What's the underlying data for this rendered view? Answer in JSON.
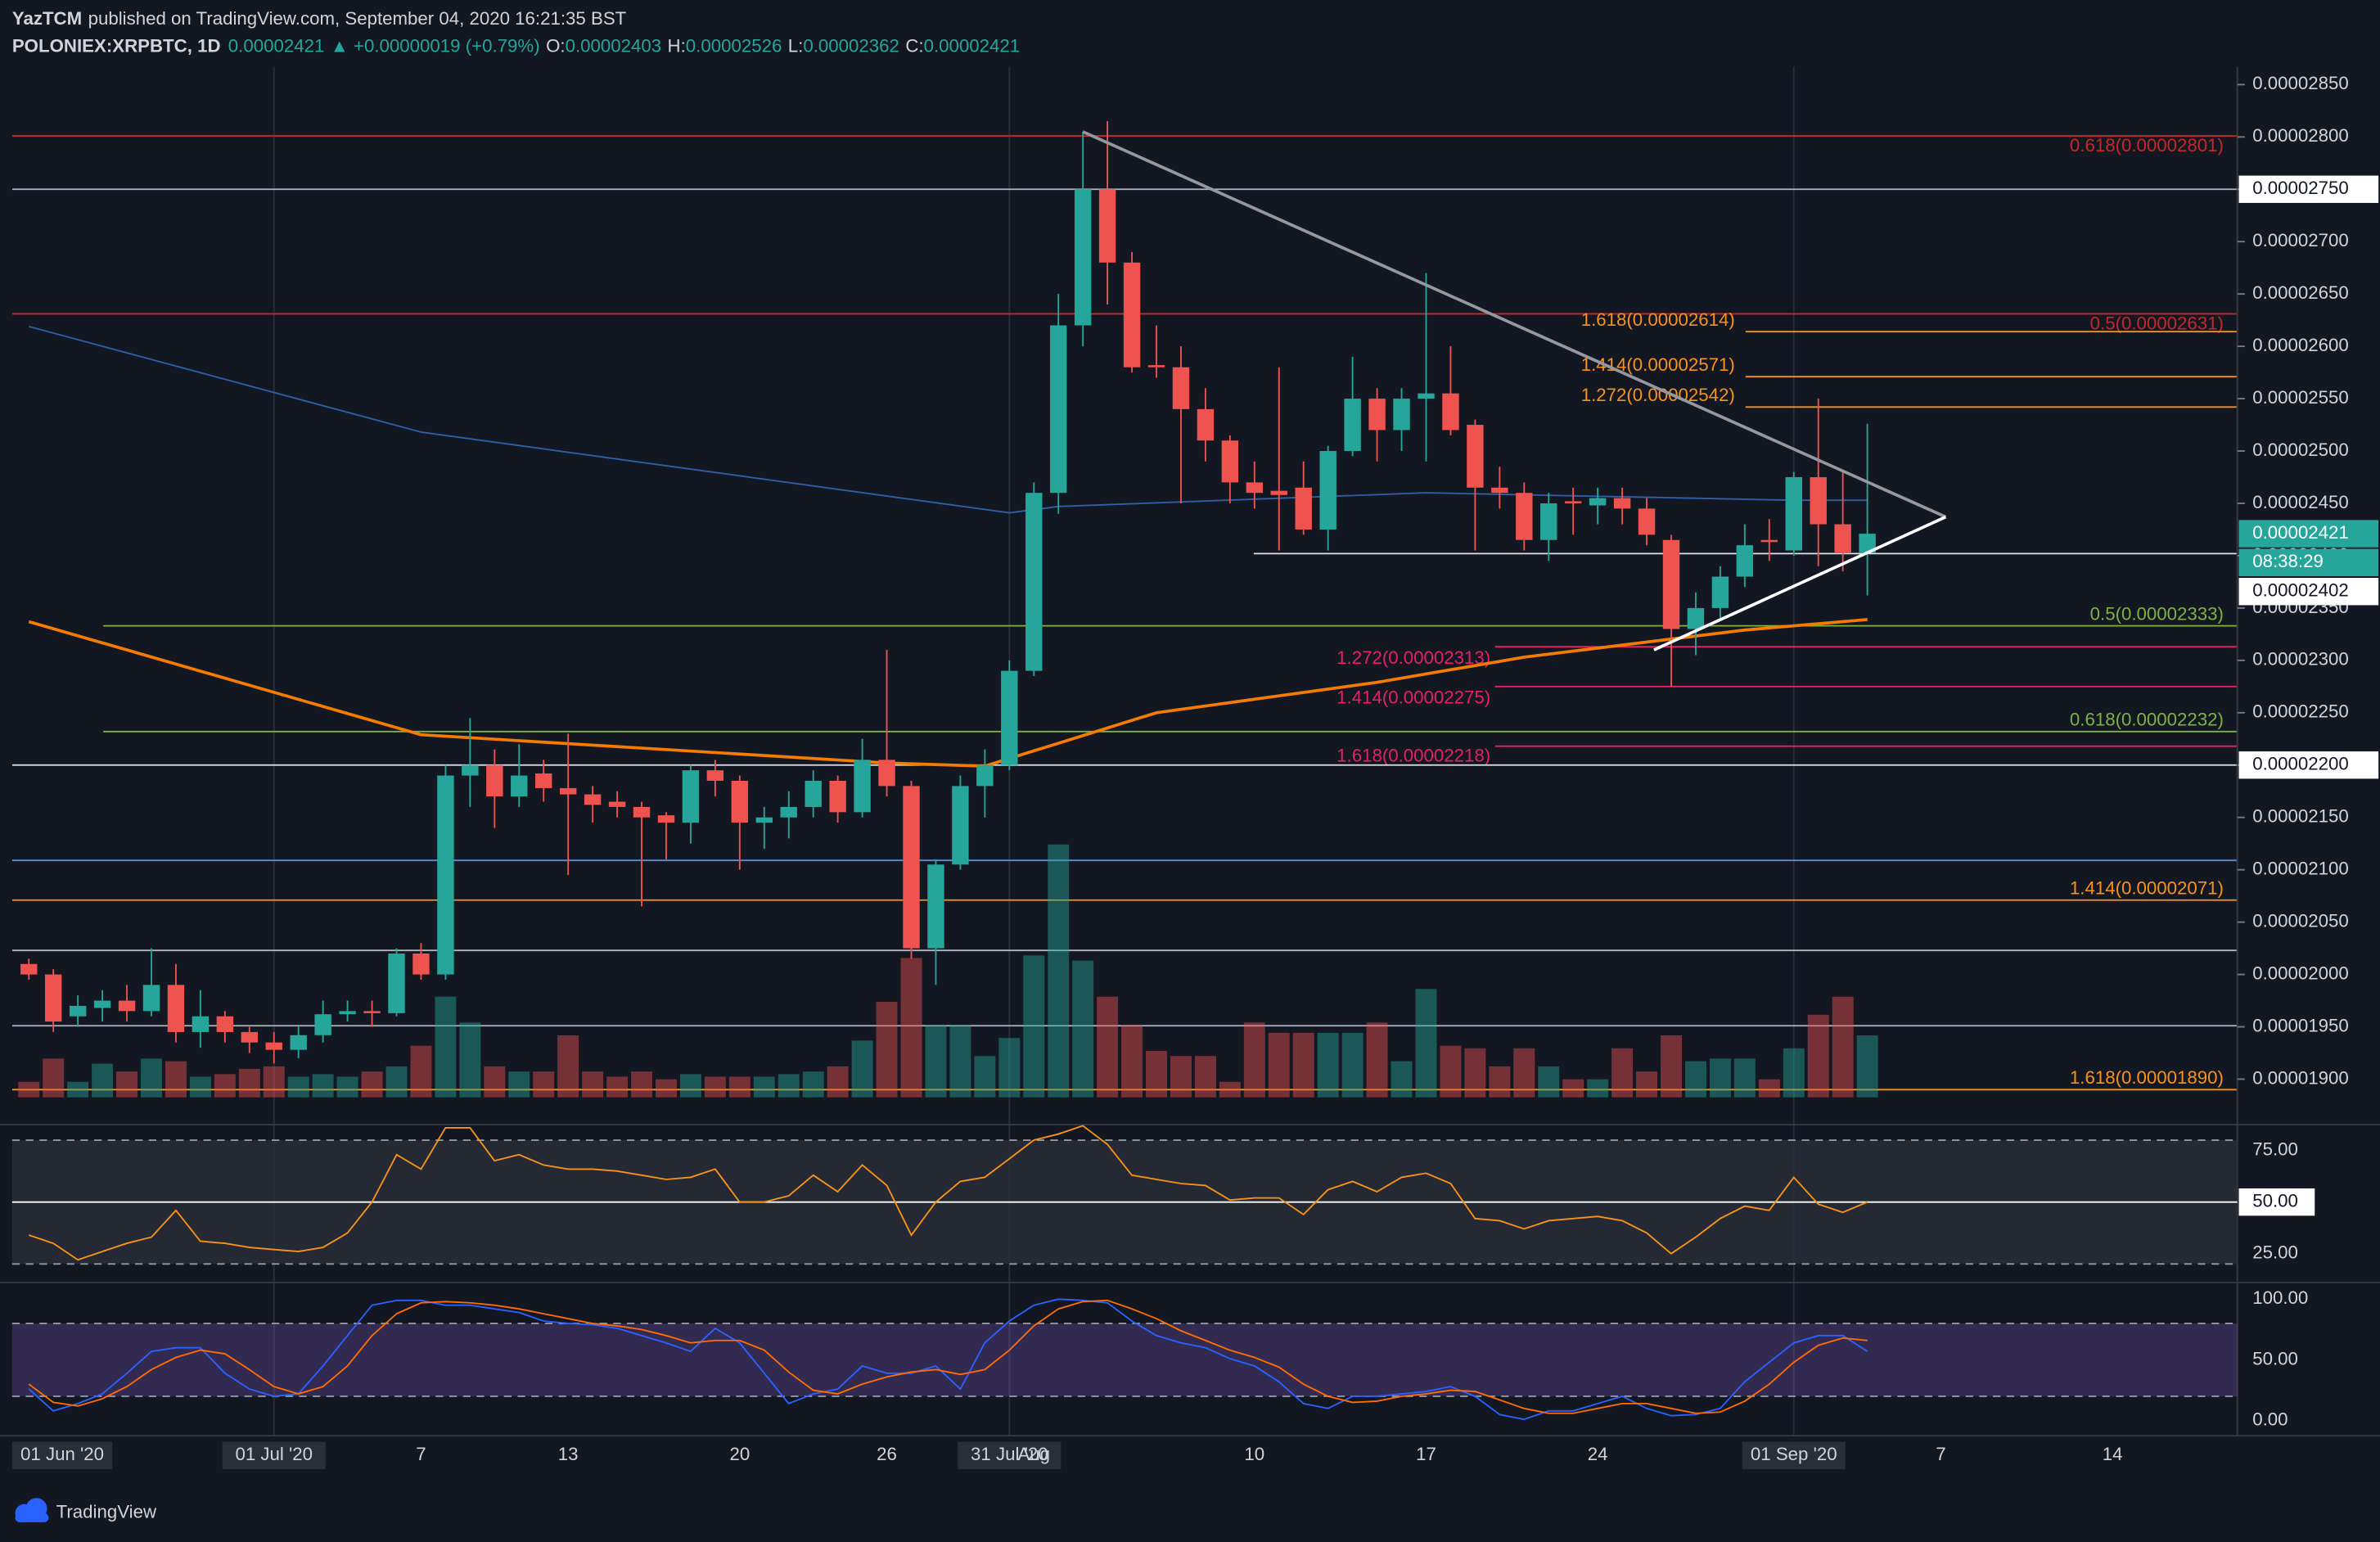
{
  "header": {
    "author": "YazTCM",
    "credit": "published on TradingView.com, September 04, 2020 16:21:35 BST",
    "symbol": "POLONIEX:XRPBTC, 1D",
    "last": "0.00002421",
    "change": "▲ +0.00000019 (+0.79%)",
    "ohlc": [
      {
        "label": "O:",
        "value": "0.00002403"
      },
      {
        "label": "H:",
        "value": "0.00002526"
      },
      {
        "label": "L:",
        "value": "0.00002362"
      },
      {
        "label": "C:",
        "value": "0.00002421"
      }
    ]
  },
  "footer": {
    "brand": "TradingView"
  },
  "chart_data": {
    "type": "candlestick",
    "categories": [
      null,
      null,
      null,
      null,
      null,
      null,
      null,
      null,
      null,
      null,
      "01 Jul '20",
      null,
      null,
      null,
      null,
      null,
      "7",
      null,
      null,
      null,
      null,
      null,
      "13",
      null,
      null,
      null,
      null,
      null,
      null,
      "20",
      null,
      null,
      null,
      null,
      null,
      "26",
      null,
      null,
      null,
      null,
      "31 Jul '20",
      "Aug",
      null,
      null,
      null,
      null,
      null,
      null,
      null,
      null,
      "10",
      null,
      null,
      null,
      null,
      null,
      null,
      "17",
      null,
      null,
      null,
      null,
      null,
      null,
      "24",
      null,
      null,
      null,
      null,
      null,
      null,
      null,
      "01 Sep '20",
      null,
      null,
      null,
      null,
      null,
      "7",
      null,
      null,
      null,
      null,
      null,
      null,
      "14"
    ],
    "left_date_label": "01 Jun '20",
    "open": [
      2.01e-05,
      2e-05,
      1.96e-05,
      1.968e-05,
      1.975e-05,
      1.965e-05,
      1.99e-05,
      1.945e-05,
      1.96e-05,
      1.945e-05,
      1.935e-05,
      1.928e-05,
      1.942e-05,
      1.962e-05,
      1.965e-05,
      1.963e-05,
      2.02e-05,
      2e-05,
      2.19e-05,
      2.2e-05,
      2.17e-05,
      2.192e-05,
      2.178e-05,
      2.172e-05,
      2.165e-05,
      2.16e-05,
      2.152e-05,
      2.145e-05,
      2.195e-05,
      2.185e-05,
      2.145e-05,
      2.15e-05,
      2.16e-05,
      2.185e-05,
      2.155e-05,
      2.205e-05,
      2.18e-05,
      2.025e-05,
      2.105e-05,
      2.18e-05,
      2.2e-05,
      2.29e-05,
      2.46e-05,
      2.62e-05,
      2.75e-05,
      2.68e-05,
      2.582e-05,
      2.58e-05,
      2.54e-05,
      2.51e-05,
      2.47e-05,
      2.462e-05,
      2.465e-05,
      2.425e-05,
      2.5e-05,
      2.55e-05,
      2.52e-05,
      2.55e-05,
      2.555e-05,
      2.525e-05,
      2.465e-05,
      2.46e-05,
      2.415e-05,
      2.452e-05,
      2.448e-05,
      2.455e-05,
      2.445e-05,
      2.415e-05,
      2.33e-05,
      2.35e-05,
      2.38e-05,
      2.415e-05,
      2.405e-05,
      2.475e-05,
      2.43e-05,
      2.403e-05,
      null,
      null,
      null,
      null,
      null,
      null,
      null,
      null,
      null,
      null
    ],
    "high": [
      2.015e-05,
      2.005e-05,
      1.98e-05,
      1.985e-05,
      1.99e-05,
      2.025e-05,
      2.01e-05,
      1.985e-05,
      1.965e-05,
      1.95e-05,
      1.945e-05,
      1.95e-05,
      1.975e-05,
      1.975e-05,
      1.975e-05,
      2.025e-05,
      2.03e-05,
      2.2e-05,
      2.245e-05,
      2.215e-05,
      2.22e-05,
      2.205e-05,
      2.23e-05,
      2.18e-05,
      2.175e-05,
      2.165e-05,
      2.155e-05,
      2.2e-05,
      2.205e-05,
      2.19e-05,
      2.16e-05,
      2.175e-05,
      2.195e-05,
      2.19e-05,
      2.225e-05,
      2.31e-05,
      2.185e-05,
      2.11e-05,
      2.19e-05,
      2.215e-05,
      2.3e-05,
      2.47e-05,
      2.65e-05,
      2.805e-05,
      2.815e-05,
      2.69e-05,
      2.62e-05,
      2.6e-05,
      2.56e-05,
      2.515e-05,
      2.49e-05,
      2.58e-05,
      2.49e-05,
      2.505e-05,
      2.59e-05,
      2.56e-05,
      2.56e-05,
      2.67e-05,
      2.6e-05,
      2.53e-05,
      2.485e-05,
      2.47e-05,
      2.46e-05,
      2.465e-05,
      2.465e-05,
      2.465e-05,
      2.455e-05,
      2.42e-05,
      2.365e-05,
      2.39e-05,
      2.43e-05,
      2.435e-05,
      2.48e-05,
      2.55e-05,
      2.48e-05,
      2.526e-05,
      null,
      null,
      null,
      null,
      null,
      null,
      null,
      null,
      null,
      null
    ],
    "low": [
      1.995e-05,
      1.945e-05,
      1.95e-05,
      1.955e-05,
      1.955e-05,
      1.96e-05,
      1.935e-05,
      1.93e-05,
      1.935e-05,
      1.925e-05,
      1.915e-05,
      1.92e-05,
      1.935e-05,
      1.955e-05,
      1.95e-05,
      1.96e-05,
      1.995e-05,
      1.995e-05,
      2.16e-05,
      2.14e-05,
      2.16e-05,
      2.165e-05,
      2.095e-05,
      2.145e-05,
      2.15e-05,
      2.065e-05,
      2.11e-05,
      2.125e-05,
      2.17e-05,
      2.1e-05,
      2.12e-05,
      2.13e-05,
      2.15e-05,
      2.145e-05,
      2.15e-05,
      2.17e-05,
      2.015e-05,
      1.99e-05,
      2.1e-05,
      2.15e-05,
      2.195e-05,
      2.285e-05,
      2.44e-05,
      2.6e-05,
      2.64e-05,
      2.575e-05,
      2.57e-05,
      2.45e-05,
      2.49e-05,
      2.45e-05,
      2.445e-05,
      2.405e-05,
      2.42e-05,
      2.405e-05,
      2.495e-05,
      2.49e-05,
      2.5e-05,
      2.49e-05,
      2.515e-05,
      2.405e-05,
      2.445e-05,
      2.405e-05,
      2.395e-05,
      2.42e-05,
      2.43e-05,
      2.43e-05,
      2.41e-05,
      2.275e-05,
      2.305e-05,
      2.34e-05,
      2.37e-05,
      2.395e-05,
      2.4e-05,
      2.39e-05,
      2.385e-05,
      2.362e-05,
      null,
      null,
      null,
      null,
      null,
      null,
      null,
      null,
      null,
      null
    ],
    "close": [
      2e-05,
      1.955e-05,
      1.97e-05,
      1.975e-05,
      1.965e-05,
      1.99e-05,
      1.945e-05,
      1.96e-05,
      1.945e-05,
      1.935e-05,
      1.928e-05,
      1.942e-05,
      1.962e-05,
      1.965e-05,
      1.963e-05,
      2.02e-05,
      2e-05,
      2.19e-05,
      2.2e-05,
      2.17e-05,
      2.19e-05,
      2.178e-05,
      2.172e-05,
      2.162e-05,
      2.16e-05,
      2.15e-05,
      2.145e-05,
      2.195e-05,
      2.185e-05,
      2.145e-05,
      2.15e-05,
      2.16e-05,
      2.185e-05,
      2.155e-05,
      2.205e-05,
      2.18e-05,
      2.025e-05,
      2.105e-05,
      2.18e-05,
      2.2e-05,
      2.29e-05,
      2.46e-05,
      2.62e-05,
      2.75e-05,
      2.68e-05,
      2.58e-05,
      2.58e-05,
      2.54e-05,
      2.51e-05,
      2.47e-05,
      2.46e-05,
      2.458e-05,
      2.425e-05,
      2.5e-05,
      2.55e-05,
      2.52e-05,
      2.55e-05,
      2.555e-05,
      2.52e-05,
      2.465e-05,
      2.46e-05,
      2.415e-05,
      2.45e-05,
      2.45e-05,
      2.455e-05,
      2.445e-05,
      2.42e-05,
      2.33e-05,
      2.35e-05,
      2.38e-05,
      2.41e-05,
      2.413e-05,
      2.475e-05,
      2.43e-05,
      2.403e-05,
      2.421e-05,
      null,
      null,
      null,
      null,
      null,
      null,
      null,
      null,
      null,
      null
    ],
    "up_color": "#26a69a",
    "down_color": "#ef5350",
    "volume": [
      6,
      15,
      6,
      13,
      10,
      15,
      14,
      8,
      9,
      11,
      12,
      8,
      9,
      8,
      10,
      12,
      20,
      39,
      29,
      12,
      10,
      10,
      24,
      10,
      8,
      10,
      7,
      9,
      8,
      8,
      8,
      9,
      10,
      12,
      22,
      37,
      54,
      28,
      28,
      16,
      23,
      55,
      98,
      53,
      39,
      28,
      18,
      16,
      16,
      6,
      29,
      25,
      25,
      25,
      25,
      29,
      14,
      42,
      20,
      19,
      12,
      19,
      12,
      7,
      7,
      19,
      10,
      24,
      14,
      15,
      15,
      7,
      19,
      32,
      39,
      24,
      null,
      null,
      null,
      null,
      null,
      null,
      null,
      null,
      null,
      null
    ],
    "volume_lim": [
      0,
      100
    ],
    "ylim": [
      1.858e-05,
      2.867e-05
    ],
    "yticks": [
      {
        "value": 2.85e-05,
        "label": "0.00002850"
      },
      {
        "value": 2.8e-05,
        "label": "0.00002800"
      },
      {
        "value": 2.75e-05,
        "label": "0.00002750"
      },
      {
        "value": 2.7e-05,
        "label": "0.00002700"
      },
      {
        "value": 2.65e-05,
        "label": "0.00002650"
      },
      {
        "value": 2.6e-05,
        "label": "0.00002600"
      },
      {
        "value": 2.55e-05,
        "label": "0.00002550"
      },
      {
        "value": 2.5e-05,
        "label": "0.00002500"
      },
      {
        "value": 2.45e-05,
        "label": "0.00002450"
      },
      {
        "value": 2.4e-05,
        "label": "0.00002400"
      },
      {
        "value": 2.35e-05,
        "label": "0.00002350"
      },
      {
        "value": 2.3e-05,
        "label": "0.00002300"
      },
      {
        "value": 2.25e-05,
        "label": "0.00002250"
      },
      {
        "value": 2.2e-05,
        "label": "0.00002200"
      },
      {
        "value": 2.15e-05,
        "label": "0.00002150"
      },
      {
        "value": 2.1e-05,
        "label": "0.00002100"
      },
      {
        "value": 2.05e-05,
        "label": "0.00002050"
      },
      {
        "value": 2e-05,
        "label": "0.00002000"
      },
      {
        "value": 1.95e-05,
        "label": "0.00001950"
      },
      {
        "value": 1.9e-05,
        "label": "0.00001900"
      }
    ],
    "price_labels": [
      {
        "value": 2.75e-05,
        "label": "0.00002750",
        "style": "white"
      },
      {
        "value": 2.421e-05,
        "label": "0.00002421",
        "style": "green"
      },
      {
        "value": 2.402e-05,
        "label": "0.00002402",
        "style": "white"
      },
      {
        "value": 2.2e-05,
        "label": "0.00002200",
        "style": "white"
      }
    ],
    "countdown": "08:38:29",
    "levels": [
      {
        "value": 2.801e-05,
        "label": "0.618(0.00002801)",
        "color": "#c62828"
      },
      {
        "value": 2.75e-05,
        "color": "#b2b5be"
      },
      {
        "value": 2.631e-05,
        "label": "0.5(0.00002631)",
        "color": "#c62828"
      },
      {
        "value": 2.614e-05,
        "label": "1.618(0.00002614)",
        "color": "#f7931a"
      },
      {
        "value": 2.571e-05,
        "label": "1.414(0.00002571)",
        "color": "#f7931a"
      },
      {
        "value": 2.542e-05,
        "label": "1.272(0.00002542)",
        "color": "#f7931a"
      },
      {
        "value": 2.402e-05,
        "color": "#e0e3eb"
      },
      {
        "value": 2.333e-05,
        "label": "0.5(0.00002333)",
        "color": "#7cb342"
      },
      {
        "value": 2.313e-05,
        "label": "1.272(0.00002313)",
        "color": "#e91e63"
      },
      {
        "value": 2.275e-05,
        "label": "1.414(0.00002275)",
        "color": "#e91e63"
      },
      {
        "value": 2.232e-05,
        "label": "0.618(0.00002232)",
        "color": "#7cb342"
      },
      {
        "value": 2.218e-05,
        "label": "1.618(0.00002218)",
        "color": "#e91e63"
      },
      {
        "value": 2.2e-05,
        "color": "#e0e3eb"
      },
      {
        "value": 2.109e-05,
        "color": "#5b8dd6"
      },
      {
        "value": 2.071e-05,
        "label": "1.414(0.00002071)",
        "color": "#f7931a"
      },
      {
        "value": 2.023e-05,
        "color": "#b2b5be"
      },
      {
        "value": 1.951e-05,
        "color": "#b2b5be"
      },
      {
        "value": 1.89e-05,
        "label": "1.618(0.00001890)",
        "color": "#f7931a"
      }
    ],
    "trendlines": [
      {
        "x": [
          43,
          78.2
        ],
        "values": [
          2.805e-05,
          2.437e-05
        ],
        "color": "#9598a1"
      },
      {
        "x": [
          66.3,
          78.2
        ],
        "values": [
          2.31e-05,
          2.437e-05
        ],
        "color": "#ffffff"
      }
    ],
    "moving_averages": [
      {
        "color": "#2f5fa8",
        "x": [
          0,
          16,
          40,
          42,
          57,
          72,
          75
        ],
        "values": [
          2.619e-05,
          2.518e-05,
          2.441e-05,
          2.447e-05,
          2.46e-05,
          2.453e-05,
          2.453e-05
        ]
      },
      {
        "color": "#f57c00",
        "x": [
          0,
          16,
          35,
          39,
          46,
          55,
          61,
          70,
          75
        ],
        "values": [
          2.337e-05,
          2.229e-05,
          2.202e-05,
          2.199e-05,
          2.25e-05,
          2.279e-05,
          2.303e-05,
          2.329e-05,
          2.339e-05
        ]
      }
    ],
    "rsi": {
      "ylim": [
        14.7,
        86.8
      ],
      "yticks": [
        {
          "value": 75,
          "label": "75.00"
        },
        {
          "value": 50,
          "label": "50.00"
        },
        {
          "value": 25,
          "label": "25.00"
        }
      ],
      "band": [
        20,
        80
      ],
      "color": "#f7931a",
      "values": [
        34,
        30,
        22,
        26,
        30,
        33,
        46,
        31,
        30,
        28,
        27,
        26,
        28,
        35,
        50,
        73,
        66,
        86,
        86,
        70,
        73,
        68,
        66,
        66,
        65,
        63,
        61,
        62,
        66,
        50,
        50,
        53,
        63,
        55,
        68,
        58,
        34,
        50,
        60,
        62,
        71,
        80,
        83,
        87,
        78,
        63,
        61,
        59,
        58,
        51,
        52,
        52,
        44,
        56,
        60,
        55,
        62,
        64,
        59,
        42,
        41,
        37,
        41,
        42,
        43,
        41,
        35,
        25,
        33,
        42,
        48,
        46,
        62,
        49,
        45,
        50,
        null,
        null,
        null,
        null,
        null,
        null,
        null,
        null,
        null,
        null
      ]
    },
    "stoch_rsi": {
      "ylim": [
        -12.5,
        112.5
      ],
      "yticks": [
        {
          "value": 100,
          "label": "100.00"
        },
        {
          "value": 50,
          "label": "50.00"
        },
        {
          "value": 0,
          "label": "0.00"
        }
      ],
      "band": [
        20,
        80
      ],
      "band_color": "#7e57c2",
      "series": [
        {
          "color": "#2962ff",
          "values": [
            26,
            8,
            14,
            22,
            39,
            57,
            60,
            60,
            39,
            26,
            20,
            22,
            45,
            70,
            95,
            99,
            99,
            95,
            95,
            92,
            89,
            82,
            80,
            79,
            76,
            70,
            64,
            57,
            76,
            64,
            39,
            14,
            22,
            26,
            45,
            39,
            39,
            45,
            26,
            64,
            82,
            95,
            100,
            99,
            97,
            82,
            70,
            64,
            60,
            51,
            45,
            32,
            14,
            10,
            20,
            20,
            22,
            24,
            28,
            20,
            5,
            1,
            8,
            8,
            14,
            20,
            10,
            4,
            5,
            10,
            32,
            48,
            64,
            70,
            70,
            57,
            null,
            null,
            null,
            null,
            null,
            null,
            null,
            null,
            null,
            null
          ]
        },
        {
          "color": "#ff6d00",
          "values": [
            30,
            15,
            12,
            18,
            28,
            42,
            52,
            58,
            55,
            42,
            28,
            22,
            28,
            45,
            70,
            88,
            97,
            98,
            97,
            95,
            92,
            88,
            84,
            80,
            78,
            75,
            70,
            64,
            66,
            66,
            58,
            40,
            25,
            22,
            30,
            36,
            40,
            42,
            38,
            42,
            58,
            78,
            92,
            98,
            99,
            92,
            84,
            74,
            66,
            58,
            52,
            44,
            30,
            20,
            15,
            16,
            20,
            22,
            25,
            24,
            17,
            10,
            6,
            6,
            10,
            14,
            14,
            10,
            6,
            7,
            16,
            30,
            48,
            62,
            68,
            66,
            null,
            null,
            null,
            null,
            null,
            null,
            null,
            null,
            null,
            null
          ]
        }
      ]
    }
  }
}
